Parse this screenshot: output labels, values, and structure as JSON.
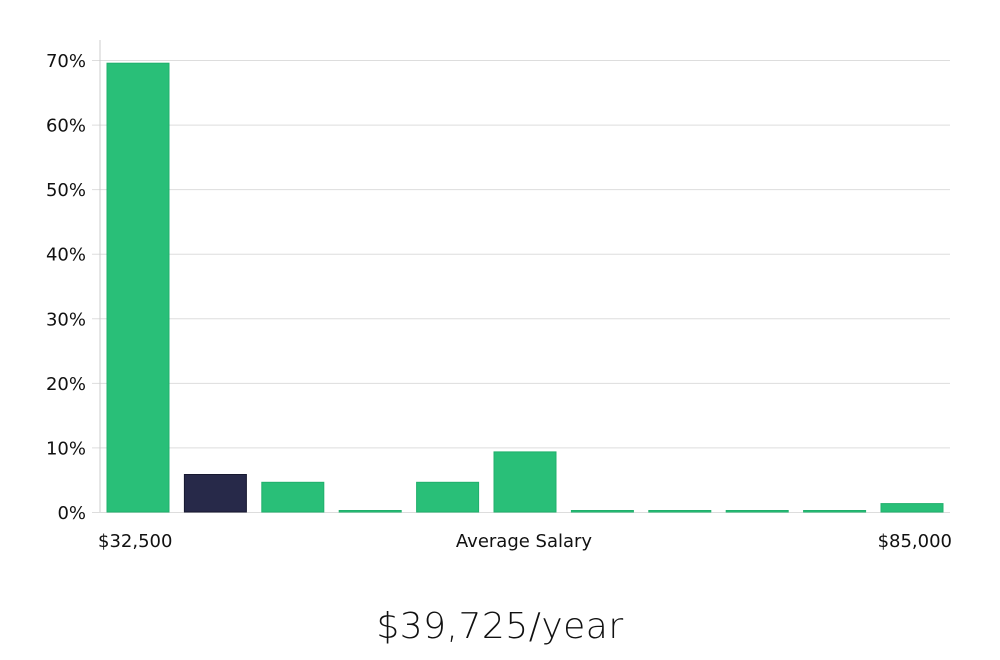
{
  "chart_data": {
    "type": "bar",
    "title": "",
    "xlabel": "Average Salary",
    "ylabel": "",
    "x_start_label": "$32,500",
    "x_end_label": "$85,000",
    "ylim": [
      0,
      70
    ],
    "yticks": [
      0,
      10,
      20,
      30,
      40,
      50,
      60,
      70
    ],
    "ytick_labels": [
      "0%",
      "10%",
      "20%",
      "30%",
      "40%",
      "50%",
      "60%",
      "70%"
    ],
    "grid": true,
    "bins": [
      {
        "value": 69.5,
        "highlight": false
      },
      {
        "value": 5.8,
        "highlight": true
      },
      {
        "value": 4.6,
        "highlight": false
      },
      {
        "value": 0.1,
        "highlight": false
      },
      {
        "value": 4.6,
        "highlight": false
      },
      {
        "value": 9.3,
        "highlight": false
      },
      {
        "value": 0.1,
        "highlight": false
      },
      {
        "value": 0.1,
        "highlight": false
      },
      {
        "value": 0.1,
        "highlight": false
      },
      {
        "value": 0.1,
        "highlight": false
      },
      {
        "value": 1.3,
        "highlight": false
      }
    ],
    "colors": {
      "bar": "#29bf78",
      "bar_border": "#20b06c",
      "highlight": "#272949",
      "highlight_border": "#171830",
      "grid": "#dddddd",
      "axis": "#cccccc"
    }
  },
  "salary": {
    "value": "$39,725/year"
  }
}
